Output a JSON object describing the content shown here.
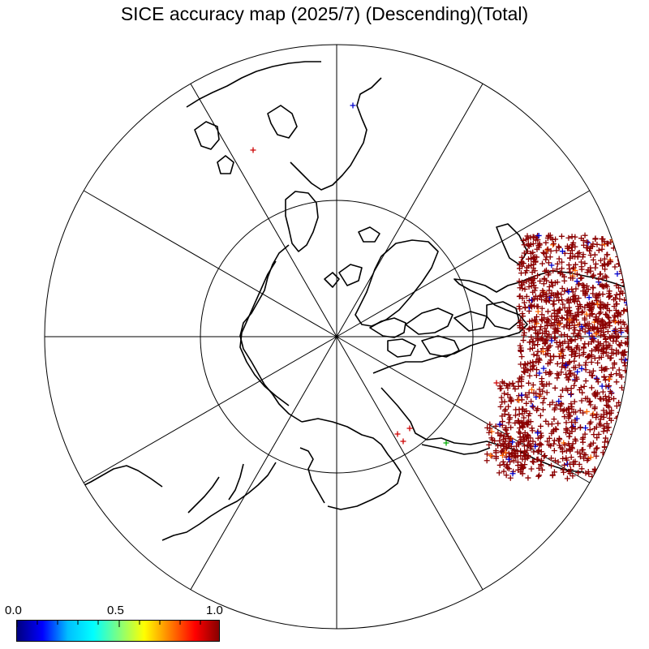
{
  "title": "SICE accuracy map (2025/7) (Descending)(Total)",
  "colorbar": {
    "ticks": [
      "0.0",
      "0.5",
      "1.0"
    ],
    "min": 0.0,
    "max": 1.0,
    "colors": [
      "#000080",
      "#0000ff",
      "#00bfff",
      "#00ffff",
      "#7fff7f",
      "#ffff00",
      "#ff8000",
      "#ff0000",
      "#800000"
    ]
  },
  "markers": {
    "symbol": "+",
    "dominant_color": "#8b0000",
    "accent_colors": [
      "#0000cc",
      "#ff6600",
      "#00aa00"
    ]
  }
}
